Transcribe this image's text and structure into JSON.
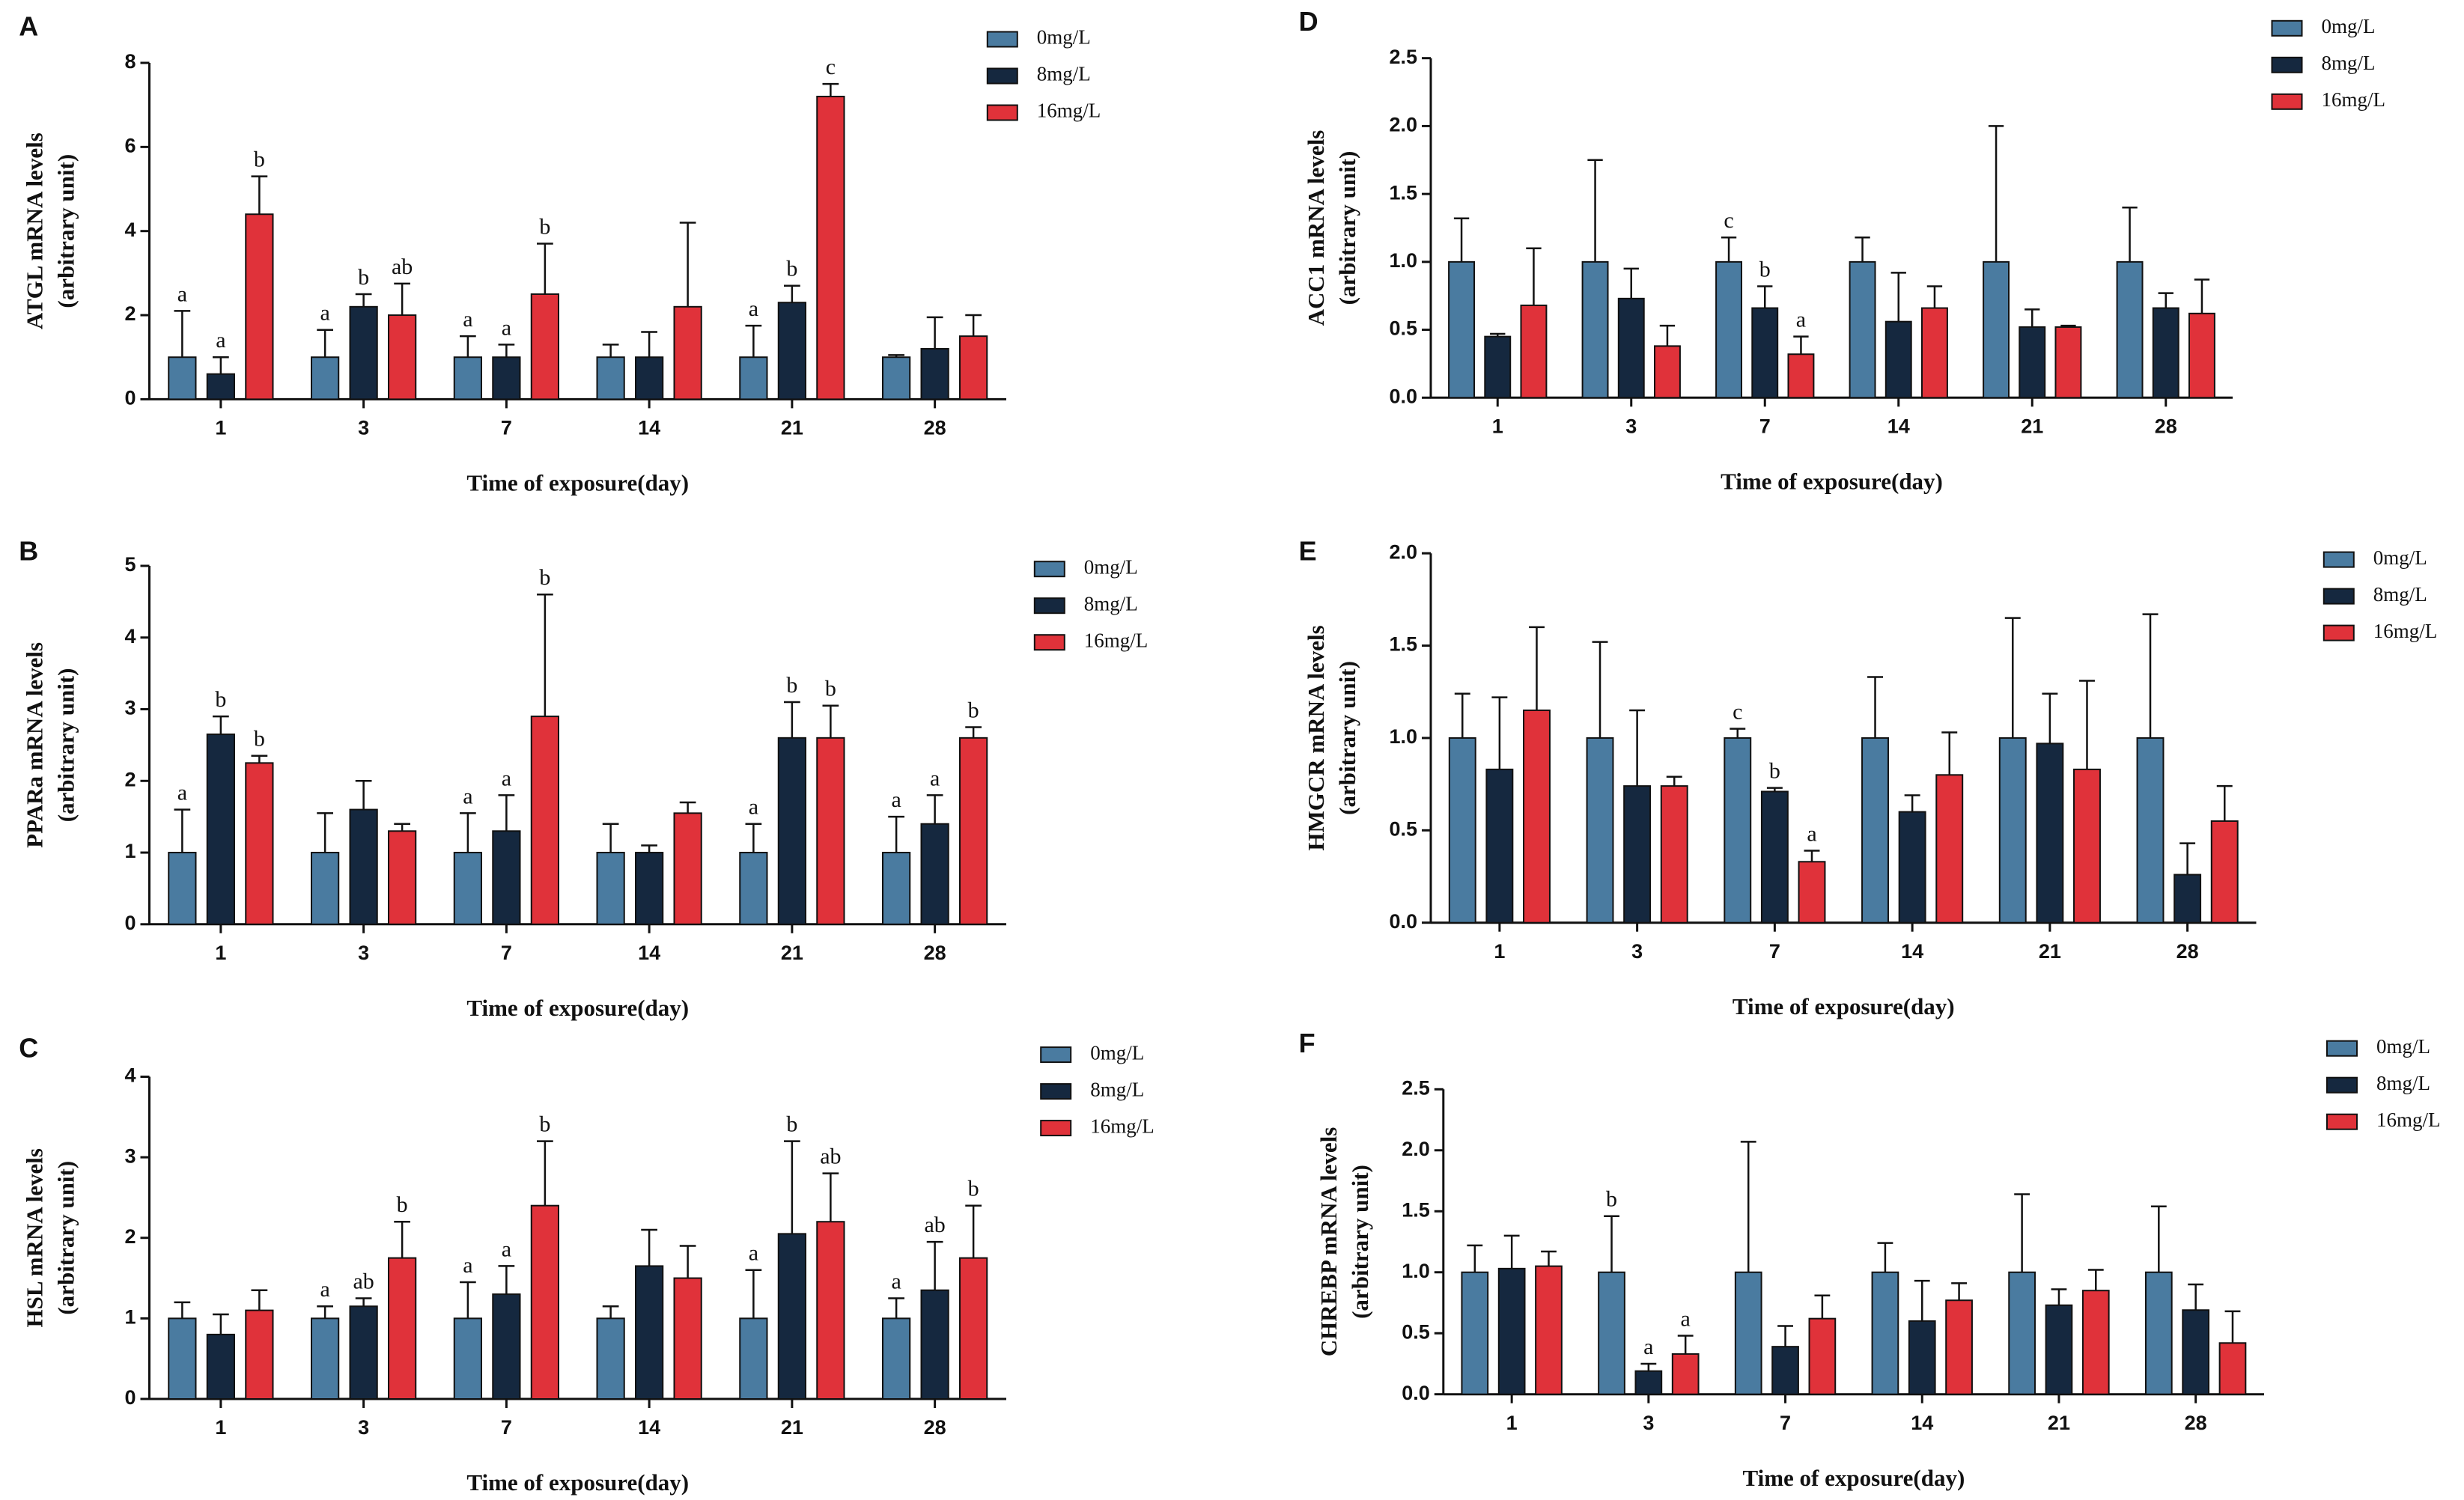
{
  "chart_data": [
    {
      "type": "bar",
      "panel": "A",
      "ylabel": [
        "ATGL mRNA levels",
        "(arbitrary unit)"
      ],
      "xlabel": "Time of exposure(day)",
      "categories": [
        "1",
        "3",
        "7",
        "14",
        "21",
        "28"
      ],
      "ylim": [
        0,
        8
      ],
      "yticks": [
        0,
        2,
        4,
        6,
        8
      ],
      "series": [
        {
          "name": "0mg/L",
          "color": "#4a7ba0",
          "values": [
            1.0,
            1.0,
            1.0,
            1.0,
            1.0,
            1.0
          ],
          "errors": [
            1.1,
            0.65,
            0.5,
            0.3,
            0.75,
            0.05
          ],
          "labels": [
            "a",
            "a",
            "a",
            null,
            "a",
            null
          ]
        },
        {
          "name": "8mg/L",
          "color": "#15283f",
          "values": [
            0.6,
            2.2,
            1.0,
            1.0,
            2.3,
            1.2
          ],
          "errors": [
            0.4,
            0.3,
            0.3,
            0.6,
            0.4,
            0.75
          ],
          "labels": [
            "a",
            "b",
            "a",
            null,
            "b",
            null
          ]
        },
        {
          "name": "16mg/L",
          "color": "#e0323a",
          "values": [
            4.4,
            2.0,
            2.5,
            2.2,
            7.2,
            1.5
          ],
          "errors": [
            0.9,
            0.75,
            1.2,
            2.0,
            0.3,
            0.5
          ],
          "labels": [
            "b",
            "ab",
            "b",
            null,
            "c",
            null
          ]
        }
      ]
    },
    {
      "type": "bar",
      "panel": "B",
      "ylabel": [
        "PPARa mRNA levels",
        "(arbitrary unit)"
      ],
      "xlabel": "Time of exposure(day)",
      "categories": [
        "1",
        "3",
        "7",
        "14",
        "21",
        "28"
      ],
      "ylim": [
        0,
        5
      ],
      "yticks": [
        0,
        1,
        2,
        3,
        4,
        5
      ],
      "series": [
        {
          "name": "0mg/L",
          "color": "#4a7ba0",
          "values": [
            1.0,
            1.0,
            1.0,
            1.0,
            1.0,
            1.0
          ],
          "errors": [
            0.6,
            0.55,
            0.55,
            0.4,
            0.4,
            0.5
          ],
          "labels": [
            "a",
            null,
            "a",
            null,
            "a",
            "a"
          ]
        },
        {
          "name": "8mg/L",
          "color": "#15283f",
          "values": [
            2.65,
            1.6,
            1.3,
            1.0,
            2.6,
            1.4
          ],
          "errors": [
            0.25,
            0.4,
            0.5,
            0.1,
            0.5,
            0.4
          ],
          "labels": [
            "b",
            null,
            "a",
            null,
            "b",
            "a"
          ]
        },
        {
          "name": "16mg/L",
          "color": "#e0323a",
          "values": [
            2.25,
            1.3,
            2.9,
            1.55,
            2.6,
            2.6
          ],
          "errors": [
            0.1,
            0.1,
            1.7,
            0.15,
            0.45,
            0.15
          ],
          "labels": [
            "b",
            null,
            "b",
            null,
            "b",
            "b"
          ]
        }
      ]
    },
    {
      "type": "bar",
      "panel": "C",
      "ylabel": [
        "HSL mRNA levels",
        "(arbitrary unit)"
      ],
      "xlabel": "Time of exposure(day)",
      "categories": [
        "1",
        "3",
        "7",
        "14",
        "21",
        "28"
      ],
      "ylim": [
        0,
        4
      ],
      "yticks": [
        0,
        1,
        2,
        3,
        4
      ],
      "series": [
        {
          "name": "0mg/L",
          "color": "#4a7ba0",
          "values": [
            1.0,
            1.0,
            1.0,
            1.0,
            1.0,
            1.0
          ],
          "errors": [
            0.2,
            0.15,
            0.45,
            0.15,
            0.6,
            0.25
          ],
          "labels": [
            null,
            "a",
            "a",
            null,
            "a",
            "a"
          ]
        },
        {
          "name": "8mg/L",
          "color": "#15283f",
          "values": [
            0.8,
            1.15,
            1.3,
            1.65,
            2.05,
            1.35
          ],
          "errors": [
            0.25,
            0.1,
            0.35,
            0.45,
            1.15,
            0.6
          ],
          "labels": [
            null,
            "ab",
            "a",
            null,
            "b",
            "ab"
          ]
        },
        {
          "name": "16mg/L",
          "color": "#e0323a",
          "values": [
            1.1,
            1.75,
            2.4,
            1.5,
            2.2,
            1.75
          ],
          "errors": [
            0.25,
            0.45,
            0.8,
            0.4,
            0.6,
            0.65
          ],
          "labels": [
            null,
            "b",
            "b",
            null,
            "ab",
            "b"
          ]
        }
      ]
    },
    {
      "type": "bar",
      "panel": "D",
      "ylabel": [
        "ACC1 mRNA levels",
        "(arbitrary unit)"
      ],
      "xlabel": "Time of exposure(day)",
      "categories": [
        "1",
        "3",
        "7",
        "14",
        "21",
        "28"
      ],
      "ylim": [
        0,
        2.5
      ],
      "yticks": [
        {
          "value": 0,
          "label": "0.0"
        },
        0.5,
        {
          "value": 1,
          "label": "1.0"
        },
        1.5,
        {
          "value": 2,
          "label": "2.0"
        },
        2.5
      ],
      "series": [
        {
          "name": "0mg/L",
          "color": "#4a7ba0",
          "values": [
            1.0,
            1.0,
            1.0,
            1.0,
            1.0,
            1.0
          ],
          "errors": [
            0.32,
            0.75,
            0.18,
            0.18,
            1.0,
            0.4
          ],
          "labels": [
            null,
            null,
            "c",
            null,
            null,
            null
          ]
        },
        {
          "name": "8mg/L",
          "color": "#15283f",
          "values": [
            0.45,
            0.73,
            0.66,
            0.56,
            0.52,
            0.66
          ],
          "errors": [
            0.02,
            0.22,
            0.16,
            0.36,
            0.13,
            0.11
          ],
          "labels": [
            null,
            null,
            "b",
            null,
            null,
            null
          ]
        },
        {
          "name": "16mg/L",
          "color": "#e0323a",
          "values": [
            0.68,
            0.38,
            0.32,
            0.66,
            0.52,
            0.62
          ],
          "errors": [
            0.42,
            0.15,
            0.13,
            0.16,
            0.01,
            0.25
          ],
          "labels": [
            null,
            null,
            "a",
            null,
            null,
            null
          ]
        }
      ]
    },
    {
      "type": "bar",
      "panel": "E",
      "ylabel": [
        "HMGCR mRNA levels",
        "(arbitrary unit)"
      ],
      "xlabel": "Time of exposure(day)",
      "categories": [
        "1",
        "3",
        "7",
        "14",
        "21",
        "28"
      ],
      "ylim": [
        0,
        2
      ],
      "yticks": [
        {
          "value": 0,
          "label": "0.0"
        },
        0.5,
        {
          "value": 1,
          "label": "1.0"
        },
        1.5,
        {
          "value": 2,
          "label": "2.0"
        }
      ],
      "series": [
        {
          "name": "0mg/L",
          "color": "#4a7ba0",
          "values": [
            1.0,
            1.0,
            1.0,
            1.0,
            1.0,
            1.0
          ],
          "errors": [
            0.24,
            0.52,
            0.05,
            0.33,
            0.65,
            0.67
          ],
          "labels": [
            null,
            null,
            "c",
            null,
            null,
            null
          ]
        },
        {
          "name": "8mg/L",
          "color": "#15283f",
          "values": [
            0.83,
            0.74,
            0.71,
            0.6,
            0.97,
            0.26
          ],
          "errors": [
            0.39,
            0.41,
            0.02,
            0.09,
            0.27,
            0.17
          ],
          "labels": [
            null,
            null,
            "b",
            null,
            null,
            null
          ]
        },
        {
          "name": "16mg/L",
          "color": "#e0323a",
          "values": [
            1.15,
            0.74,
            0.33,
            0.8,
            0.83,
            0.55
          ],
          "errors": [
            0.45,
            0.05,
            0.06,
            0.23,
            0.48,
            0.19
          ],
          "labels": [
            null,
            null,
            "a",
            null,
            null,
            null
          ]
        }
      ]
    },
    {
      "type": "bar",
      "panel": "F",
      "ylabel": [
        "CHREBP mRNA levels",
        "(arbitrary unit)"
      ],
      "xlabel": "Time of exposure(day)",
      "categories": [
        "1",
        "3",
        "7",
        "14",
        "21",
        "28"
      ],
      "ylim": [
        0,
        2.5
      ],
      "yticks": [
        {
          "value": 0,
          "label": "0.0"
        },
        0.5,
        {
          "value": 1,
          "label": "1.0"
        },
        1.5,
        {
          "value": 2,
          "label": "2.0"
        },
        2.5
      ],
      "series": [
        {
          "name": "0mg/L",
          "color": "#4a7ba0",
          "values": [
            1.0,
            1.0,
            1.0,
            1.0,
            1.0,
            1.0
          ],
          "errors": [
            0.22,
            0.46,
            1.07,
            0.24,
            0.64,
            0.54
          ],
          "labels": [
            null,
            "b",
            null,
            null,
            null,
            null
          ]
        },
        {
          "name": "8mg/L",
          "color": "#15283f",
          "values": [
            1.03,
            0.19,
            0.39,
            0.6,
            0.73,
            0.69
          ],
          "errors": [
            0.27,
            0.06,
            0.17,
            0.33,
            0.13,
            0.21
          ],
          "labels": [
            null,
            "a",
            null,
            null,
            null,
            null
          ]
        },
        {
          "name": "16mg/L",
          "color": "#e0323a",
          "values": [
            1.05,
            0.33,
            0.62,
            0.77,
            0.85,
            0.42
          ],
          "errors": [
            0.12,
            0.15,
            0.19,
            0.14,
            0.17,
            0.26
          ],
          "labels": [
            null,
            "a",
            null,
            null,
            null,
            null
          ]
        }
      ]
    }
  ]
}
